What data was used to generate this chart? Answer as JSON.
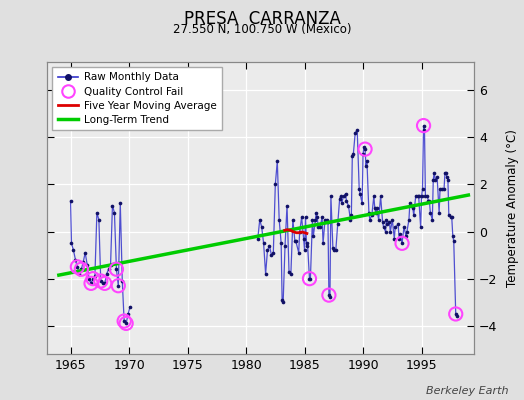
{
  "title": "PRESA  CARRANZA",
  "subtitle": "27.550 N, 100.750 W (Mexico)",
  "ylabel": "Temperature Anomaly (°C)",
  "credit": "Berkeley Earth",
  "xlim": [
    1963.0,
    1999.5
  ],
  "ylim": [
    -5.2,
    7.2
  ],
  "yticks": [
    -4,
    -2,
    0,
    2,
    4,
    6
  ],
  "xticks": [
    1965,
    1970,
    1975,
    1980,
    1985,
    1990,
    1995
  ],
  "outer_bg": "#e0e0e0",
  "plot_bg_color": "#ebebeb",
  "raw_data": [
    [
      1965.0,
      1.3
    ],
    [
      1965.08,
      -0.5
    ],
    [
      1965.25,
      -0.8
    ],
    [
      1965.42,
      -1.2
    ],
    [
      1965.58,
      -1.5
    ],
    [
      1965.75,
      -1.8
    ],
    [
      1965.92,
      -1.6
    ],
    [
      1966.08,
      -1.3
    ],
    [
      1966.25,
      -0.9
    ],
    [
      1966.42,
      -1.4
    ],
    [
      1966.58,
      -2.0
    ],
    [
      1966.75,
      -2.2
    ],
    [
      1966.92,
      -2.0
    ],
    [
      1967.08,
      -1.9
    ],
    [
      1967.25,
      0.8
    ],
    [
      1967.42,
      0.5
    ],
    [
      1967.58,
      -2.1
    ],
    [
      1967.75,
      -2.2
    ],
    [
      1967.92,
      -2.2
    ],
    [
      1968.08,
      -1.8
    ],
    [
      1968.25,
      -1.6
    ],
    [
      1968.42,
      -1.4
    ],
    [
      1968.58,
      1.1
    ],
    [
      1968.75,
      0.8
    ],
    [
      1968.92,
      -1.6
    ],
    [
      1969.08,
      -2.3
    ],
    [
      1969.25,
      1.2
    ],
    [
      1969.42,
      -2.1
    ],
    [
      1969.58,
      -3.8
    ],
    [
      1969.75,
      -3.9
    ],
    [
      1969.92,
      -3.5
    ],
    [
      1970.08,
      -3.2
    ],
    [
      1981.0,
      -0.3
    ],
    [
      1981.17,
      0.5
    ],
    [
      1981.33,
      0.2
    ],
    [
      1981.5,
      -0.5
    ],
    [
      1981.67,
      -1.8
    ],
    [
      1981.83,
      -0.8
    ],
    [
      1982.0,
      -0.6
    ],
    [
      1982.17,
      -1.0
    ],
    [
      1982.33,
      -0.9
    ],
    [
      1982.5,
      2.0
    ],
    [
      1982.67,
      3.0
    ],
    [
      1982.83,
      0.5
    ],
    [
      1983.0,
      -0.5
    ],
    [
      1983.08,
      -2.9
    ],
    [
      1983.17,
      -3.0
    ],
    [
      1983.33,
      -0.6
    ],
    [
      1983.5,
      1.1
    ],
    [
      1983.67,
      -1.7
    ],
    [
      1983.83,
      -1.8
    ],
    [
      1984.0,
      0.5
    ],
    [
      1984.17,
      -0.4
    ],
    [
      1984.25,
      -0.4
    ],
    [
      1984.5,
      -0.9
    ],
    [
      1984.58,
      0.0
    ],
    [
      1984.75,
      0.6
    ],
    [
      1984.92,
      -0.3
    ],
    [
      1985.0,
      -0.8
    ],
    [
      1985.08,
      0.6
    ],
    [
      1985.17,
      -0.6
    ],
    [
      1985.25,
      -0.5
    ],
    [
      1985.42,
      -2.0
    ],
    [
      1985.5,
      -2.0
    ],
    [
      1985.67,
      0.5
    ],
    [
      1985.75,
      -0.2
    ],
    [
      1985.92,
      0.5
    ],
    [
      1986.0,
      0.8
    ],
    [
      1986.08,
      0.6
    ],
    [
      1986.17,
      0.2
    ],
    [
      1986.33,
      0.2
    ],
    [
      1986.5,
      0.6
    ],
    [
      1986.58,
      -0.5
    ],
    [
      1986.75,
      0.5
    ],
    [
      1986.92,
      0.5
    ],
    [
      1987.0,
      0.4
    ],
    [
      1987.08,
      -2.7
    ],
    [
      1987.17,
      -2.8
    ],
    [
      1987.25,
      1.5
    ],
    [
      1987.42,
      -0.7
    ],
    [
      1987.5,
      -0.8
    ],
    [
      1987.67,
      -0.8
    ],
    [
      1987.83,
      0.3
    ],
    [
      1988.0,
      1.4
    ],
    [
      1988.08,
      1.5
    ],
    [
      1988.17,
      1.2
    ],
    [
      1988.33,
      1.5
    ],
    [
      1988.5,
      1.6
    ],
    [
      1988.58,
      1.3
    ],
    [
      1988.75,
      1.1
    ],
    [
      1988.92,
      0.5
    ],
    [
      1989.0,
      0.7
    ],
    [
      1989.08,
      3.2
    ],
    [
      1989.17,
      3.3
    ],
    [
      1989.33,
      4.2
    ],
    [
      1989.5,
      4.3
    ],
    [
      1989.67,
      1.8
    ],
    [
      1989.75,
      1.6
    ],
    [
      1989.92,
      1.2
    ],
    [
      1990.0,
      3.3
    ],
    [
      1990.08,
      3.6
    ],
    [
      1990.17,
      3.5
    ],
    [
      1990.25,
      2.8
    ],
    [
      1990.33,
      3.0
    ],
    [
      1990.5,
      0.8
    ],
    [
      1990.58,
      0.5
    ],
    [
      1990.75,
      0.7
    ],
    [
      1990.92,
      1.5
    ],
    [
      1991.0,
      1.0
    ],
    [
      1991.08,
      0.8
    ],
    [
      1991.17,
      1.0
    ],
    [
      1991.33,
      0.5
    ],
    [
      1991.5,
      1.5
    ],
    [
      1991.67,
      0.4
    ],
    [
      1991.75,
      0.2
    ],
    [
      1991.92,
      0.0
    ],
    [
      1992.0,
      0.5
    ],
    [
      1992.08,
      0.3
    ],
    [
      1992.25,
      0.4
    ],
    [
      1992.33,
      0.0
    ],
    [
      1992.5,
      0.5
    ],
    [
      1992.67,
      -0.3
    ],
    [
      1992.75,
      0.2
    ],
    [
      1993.0,
      0.3
    ],
    [
      1993.08,
      -0.3
    ],
    [
      1993.17,
      -0.1
    ],
    [
      1993.33,
      -0.5
    ],
    [
      1993.5,
      0.2
    ],
    [
      1993.67,
      -0.2
    ],
    [
      1993.75,
      0.0
    ],
    [
      1993.92,
      0.5
    ],
    [
      1994.0,
      1.2
    ],
    [
      1994.17,
      1.1
    ],
    [
      1994.25,
      1.0
    ],
    [
      1994.33,
      0.7
    ],
    [
      1994.5,
      1.5
    ],
    [
      1994.67,
      1.5
    ],
    [
      1994.75,
      1.5
    ],
    [
      1994.92,
      0.2
    ],
    [
      1995.0,
      1.5
    ],
    [
      1995.08,
      1.8
    ],
    [
      1995.17,
      4.5
    ],
    [
      1995.25,
      4.3
    ],
    [
      1995.33,
      1.5
    ],
    [
      1995.5,
      1.5
    ],
    [
      1995.58,
      1.3
    ],
    [
      1995.67,
      1.3
    ],
    [
      1995.75,
      0.8
    ],
    [
      1995.92,
      0.5
    ],
    [
      1996.0,
      2.2
    ],
    [
      1996.08,
      2.5
    ],
    [
      1996.17,
      2.2
    ],
    [
      1996.33,
      2.3
    ],
    [
      1996.5,
      0.8
    ],
    [
      1996.58,
      1.8
    ],
    [
      1996.75,
      1.8
    ],
    [
      1996.92,
      1.8
    ],
    [
      1997.0,
      2.5
    ],
    [
      1997.08,
      2.5
    ],
    [
      1997.17,
      2.3
    ],
    [
      1997.25,
      2.2
    ],
    [
      1997.33,
      0.7
    ],
    [
      1997.5,
      0.6
    ],
    [
      1997.58,
      0.6
    ],
    [
      1997.67,
      -0.2
    ],
    [
      1997.75,
      -0.4
    ],
    [
      1997.92,
      -3.5
    ],
    [
      1998.0,
      -3.6
    ]
  ],
  "qc_fail_points": [
    [
      1965.58,
      -1.5
    ],
    [
      1965.92,
      -1.6
    ],
    [
      1966.75,
      -2.2
    ],
    [
      1966.92,
      -2.0
    ],
    [
      1967.58,
      -2.1
    ],
    [
      1967.92,
      -2.2
    ],
    [
      1968.92,
      -1.6
    ],
    [
      1969.08,
      -2.3
    ],
    [
      1969.58,
      -3.8
    ],
    [
      1969.75,
      -3.9
    ],
    [
      1985.42,
      -2.0
    ],
    [
      1987.08,
      -2.7
    ],
    [
      1990.17,
      3.5
    ],
    [
      1993.33,
      -0.5
    ],
    [
      1995.17,
      4.5
    ],
    [
      1997.92,
      -3.5
    ]
  ],
  "moving_avg": [
    [
      1983.3,
      0.05
    ],
    [
      1983.5,
      0.08
    ],
    [
      1983.8,
      0.05
    ],
    [
      1984.0,
      0.0
    ],
    [
      1984.3,
      -0.05
    ],
    [
      1984.5,
      -0.05
    ],
    [
      1984.8,
      -0.02
    ],
    [
      1985.0,
      -0.05
    ],
    [
      1985.2,
      -0.08
    ]
  ],
  "trend_line": [
    [
      1964.0,
      -1.85
    ],
    [
      1999.0,
      1.55
    ]
  ],
  "raw_line_color": "#3333cc",
  "raw_dot_color": "#111166",
  "qc_color": "#ff44ff",
  "moving_avg_color": "#dd0000",
  "trend_color": "#00cc00"
}
